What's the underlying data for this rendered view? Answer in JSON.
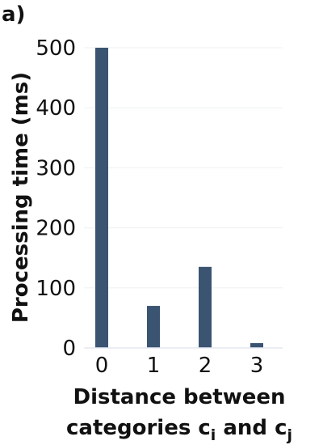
{
  "panel_label": "a)",
  "chart_data": {
    "type": "bar",
    "categories": [
      "0",
      "1",
      "2",
      "3"
    ],
    "values": [
      500,
      70,
      135,
      8
    ],
    "ylabel": "Processing time (ms)",
    "xlabel_line1": "Distance between",
    "xlabel_line2_prefix": "categories c",
    "xlabel_sub_i": "i",
    "xlabel_line2_mid": " and c",
    "xlabel_sub_j": "j",
    "ylim": [
      0,
      500
    ],
    "yticks": [
      "0",
      "100",
      "200",
      "300",
      "400",
      "500"
    ],
    "grid": true,
    "bar_color": "#3a5471",
    "grid_color": "#eef0f3",
    "axis_color": "#e3e7ef"
  }
}
